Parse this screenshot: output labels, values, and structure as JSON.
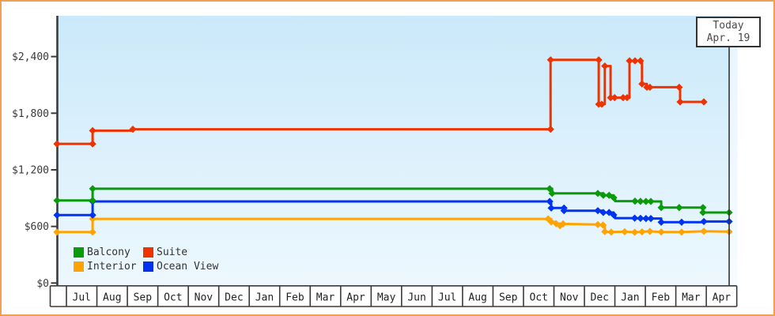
{
  "colors": {
    "frame_border": "#f0a052",
    "axis": "#3a3a3a",
    "plot_bg_top": "#cbe9fa",
    "plot_bg_bottom": "#edf8fe",
    "suite": "#ee3300",
    "balcony": "#0a9b0a",
    "interior": "#ffa303",
    "ocean_view": "#0033f0"
  },
  "legend": [
    {
      "label": "Balcony",
      "color": "#0a9b0a"
    },
    {
      "label": "Suite",
      "color": "#ee3300"
    },
    {
      "label": "Interior",
      "color": "#ffa303"
    },
    {
      "label": "Ocean View",
      "color": "#0033f0"
    }
  ],
  "chart_data": {
    "type": "line",
    "title": "",
    "description": "Cruise cabin price history by category; stepped lines with diamond markers at price changes.",
    "y_axis": {
      "tick_values": [
        0,
        600,
        1200,
        1800,
        2400
      ],
      "tick_labels": [
        "$0",
        "$600",
        "$1,200",
        "$1,800",
        "$2,400"
      ],
      "ylim": [
        0,
        2830
      ],
      "grid": false
    },
    "x_axis": {
      "month_labels": [
        "Jul",
        "Aug",
        "Sep",
        "Oct",
        "Nov",
        "Dec",
        "Jan",
        "Feb",
        "Mar",
        "Apr",
        "May",
        "Jun",
        "Jul",
        "Aug",
        "Sep",
        "Oct",
        "Nov",
        "Dec",
        "Jan",
        "Feb",
        "Mar",
        "Apr"
      ],
      "unit": "months since first July (0 = Jul 1); fractional = day within month"
    },
    "today": {
      "label": "Today",
      "date": "Apr. 19",
      "month_position": 21.75
    },
    "series": [
      {
        "name": "Interior",
        "color": "#ffa303",
        "points": [
          [
            -0.31,
            540,
            1
          ],
          [
            0.86,
            540,
            1
          ],
          [
            0.86,
            680,
            1
          ],
          [
            15.81,
            680,
            1
          ],
          [
            15.91,
            680,
            0
          ],
          [
            15.91,
            648,
            1
          ],
          [
            16.07,
            648,
            0
          ],
          [
            16.07,
            630,
            1
          ],
          [
            16.2,
            630,
            0
          ],
          [
            16.2,
            607,
            1
          ],
          [
            16.3,
            607,
            0
          ],
          [
            16.3,
            627,
            1
          ],
          [
            17.44,
            620,
            1
          ],
          [
            17.61,
            615,
            1
          ],
          [
            17.67,
            615,
            0
          ],
          [
            17.67,
            545,
            1
          ],
          [
            17.88,
            540,
            1
          ],
          [
            18.32,
            544,
            1
          ],
          [
            18.65,
            538,
            1
          ],
          [
            18.89,
            543,
            1
          ],
          [
            19.15,
            548,
            1
          ],
          [
            19.52,
            541,
            1
          ],
          [
            20.19,
            540,
            1
          ],
          [
            20.92,
            549,
            1
          ],
          [
            21.75,
            544,
            1
          ]
        ]
      },
      {
        "name": "Ocean View",
        "color": "#0033f0",
        "points": [
          [
            -0.31,
            720,
            1
          ],
          [
            0.86,
            720,
            1
          ],
          [
            0.86,
            865,
            1
          ],
          [
            15.86,
            865,
            1
          ],
          [
            15.91,
            865,
            0
          ],
          [
            15.91,
            795,
            1
          ],
          [
            16.33,
            795,
            1
          ],
          [
            16.33,
            767,
            1
          ],
          [
            17.44,
            767,
            1
          ],
          [
            17.62,
            767,
            0
          ],
          [
            17.62,
            748,
            1
          ],
          [
            17.81,
            748,
            1
          ],
          [
            17.96,
            748,
            0
          ],
          [
            17.96,
            722,
            1
          ],
          [
            18.01,
            722,
            0
          ],
          [
            18.01,
            688,
            0
          ],
          [
            18.65,
            688,
            1
          ],
          [
            18.84,
            686,
            1
          ],
          [
            19.02,
            684,
            1
          ],
          [
            19.18,
            684,
            1
          ],
          [
            19.52,
            684,
            0
          ],
          [
            19.52,
            645,
            1
          ],
          [
            20.19,
            645,
            1
          ],
          [
            20.92,
            645,
            0
          ],
          [
            20.92,
            652,
            1
          ],
          [
            21.75,
            652,
            1
          ]
        ]
      },
      {
        "name": "Balcony",
        "color": "#0a9b0a",
        "points": [
          [
            -0.31,
            875,
            1
          ],
          [
            0.86,
            875,
            1
          ],
          [
            0.86,
            1000,
            1
          ],
          [
            15.86,
            1000,
            1
          ],
          [
            15.94,
            1000,
            0
          ],
          [
            15.94,
            950,
            1
          ],
          [
            17.44,
            950,
            1
          ],
          [
            17.62,
            950,
            0
          ],
          [
            17.62,
            930,
            1
          ],
          [
            17.81,
            930,
            1
          ],
          [
            17.96,
            930,
            0
          ],
          [
            17.96,
            905,
            1
          ],
          [
            18.01,
            905,
            0
          ],
          [
            18.01,
            868,
            0
          ],
          [
            18.66,
            868,
            1
          ],
          [
            18.84,
            866,
            1
          ],
          [
            19.02,
            865,
            1
          ],
          [
            19.18,
            865,
            1
          ],
          [
            19.52,
            865,
            0
          ],
          [
            19.52,
            800,
            1
          ],
          [
            20.11,
            800,
            1
          ],
          [
            20.89,
            800,
            1
          ],
          [
            20.89,
            748,
            1
          ],
          [
            21.75,
            748,
            1
          ]
        ]
      },
      {
        "name": "Suite",
        "color": "#ee3300",
        "points": [
          [
            -0.31,
            1475,
            1
          ],
          [
            0.86,
            1475,
            1
          ],
          [
            0.86,
            1615,
            1
          ],
          [
            2.18,
            1615,
            0
          ],
          [
            2.18,
            1630,
            1
          ],
          [
            15.89,
            1630,
            1
          ],
          [
            15.89,
            2365,
            1
          ],
          [
            17.47,
            2365,
            1
          ],
          [
            17.47,
            1895,
            1
          ],
          [
            17.57,
            1895,
            1
          ],
          [
            17.67,
            1895,
            0
          ],
          [
            17.67,
            2300,
            1
          ],
          [
            17.86,
            2300,
            0
          ],
          [
            17.86,
            1965,
            1
          ],
          [
            17.99,
            1965,
            1
          ],
          [
            18.27,
            1965,
            1
          ],
          [
            18.4,
            1965,
            1
          ],
          [
            18.48,
            1965,
            0
          ],
          [
            18.48,
            2355,
            1
          ],
          [
            18.66,
            2355,
            1
          ],
          [
            18.84,
            2355,
            1
          ],
          [
            18.89,
            2355,
            0
          ],
          [
            18.89,
            2110,
            1
          ],
          [
            19.05,
            2110,
            0
          ],
          [
            19.05,
            2075,
            1
          ],
          [
            19.15,
            2075,
            1
          ],
          [
            20.11,
            2075,
            1
          ],
          [
            20.14,
            2075,
            0
          ],
          [
            20.14,
            1920,
            1
          ],
          [
            20.92,
            1920,
            1
          ]
        ]
      }
    ]
  }
}
